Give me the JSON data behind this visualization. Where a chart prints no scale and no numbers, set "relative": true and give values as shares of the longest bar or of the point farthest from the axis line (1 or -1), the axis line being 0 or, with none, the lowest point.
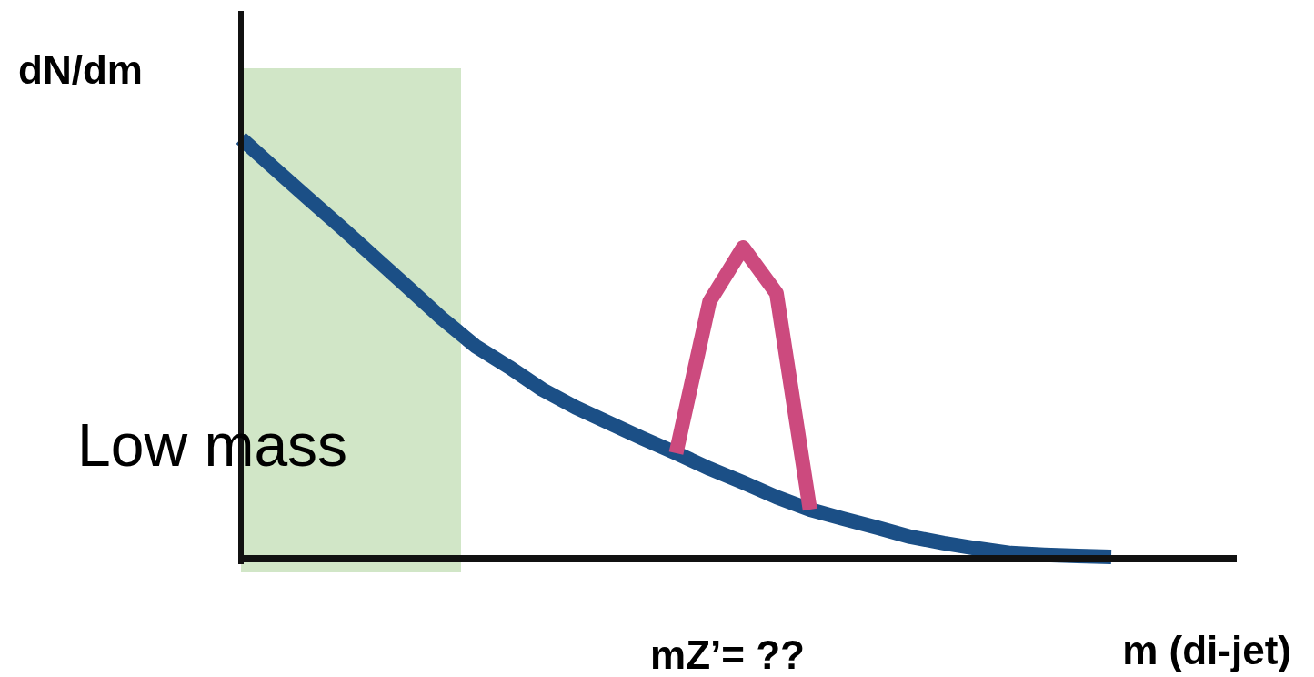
{
  "chart_data": {
    "type": "line",
    "relative": true,
    "ylabel": "dN/dm",
    "xlabel": "m (di-jet)",
    "categories": [
      null,
      null,
      null,
      null,
      null,
      null,
      null,
      null,
      null,
      null,
      null,
      null,
      null,
      null,
      null,
      null,
      null,
      null,
      null,
      null,
      null,
      null,
      null,
      null,
      null,
      null,
      null
    ],
    "series": [
      {
        "color": "#1b4f86",
        "values": [
          1,
          0.928,
          0.857,
          0.787,
          0.715,
          0.643,
          0.57,
          0.504,
          0.454,
          0.4,
          0.357,
          0.32,
          0.283,
          0.248,
          0.211,
          0.178,
          0.143,
          0.113,
          0.091,
          0.07,
          0.048,
          0.033,
          0.02,
          0.009,
          0.005,
          0.002,
          0
        ]
      },
      {
        "color": "#cc4a7e",
        "values": [
          null,
          null,
          null,
          null,
          null,
          null,
          null,
          null,
          null,
          null,
          null,
          null,
          null,
          0.248,
          0.61,
          0.739,
          0.63,
          0.113,
          null,
          null,
          null,
          null,
          null,
          null,
          null,
          null,
          null
        ]
      }
    ],
    "annotations": [
      "Low mass",
      "mZ’= ??"
    ]
  }
}
